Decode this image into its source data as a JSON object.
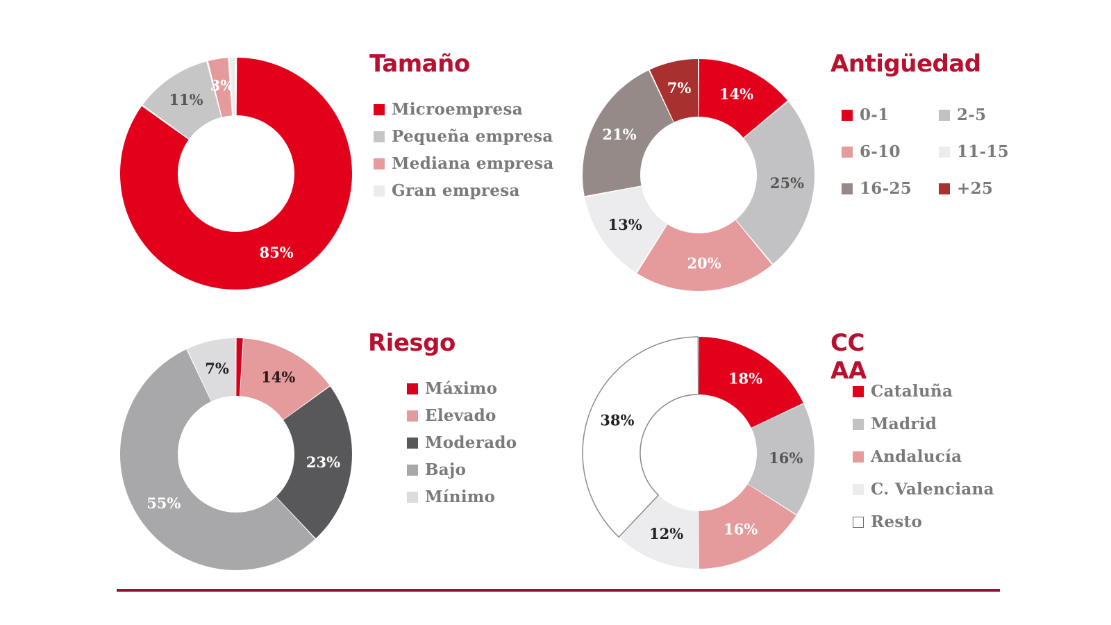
{
  "colors": {
    "title": "#b8102e",
    "rule": "#9b0f2e",
    "legend_text": "#7a7a7a"
  },
  "chart_data": [
    {
      "id": "tamano",
      "type": "pie",
      "donut": true,
      "title": "Tamaño",
      "legend_layout": "list",
      "legend_position": "right",
      "slices": [
        {
          "name": "Microempresa",
          "value": 85,
          "label": "85%",
          "color": "#e2001a",
          "label_color": "#ffffff"
        },
        {
          "name": "Pequeña empresa",
          "value": 11,
          "label": "11%",
          "color": "#c6c6c6",
          "label_color": "#555555"
        },
        {
          "name": "Mediana empresa",
          "value": 3,
          "label": "3%",
          "color": "#e59a9c",
          "label_color": "#ffffff"
        },
        {
          "name": "Gran empresa",
          "value": 1,
          "label": "",
          "color": "#ececec",
          "label_color": "#555555"
        }
      ]
    },
    {
      "id": "antiguedad",
      "type": "pie",
      "donut": true,
      "title": "Antigüedad",
      "legend_layout": "grid",
      "legend_position": "right",
      "slices": [
        {
          "name": "0-1",
          "value": 14,
          "label": "14%",
          "color": "#e2001a",
          "label_color": "#ffffff"
        },
        {
          "name": "2-5",
          "value": 25,
          "label": "25%",
          "color": "#c2c2c4",
          "label_color": "#555555"
        },
        {
          "name": "6-10",
          "value": 20,
          "label": "20%",
          "color": "#e59a9c",
          "label_color": "#ffffff"
        },
        {
          "name": "11-15",
          "value": 13,
          "label": "13%",
          "color": "#ececee",
          "label_color": "#222222"
        },
        {
          "name": "16-25",
          "value": 21,
          "label": "21%",
          "color": "#958a87",
          "label_color": "#ffffff"
        },
        {
          "name": "+25",
          "value": 7,
          "label": "7%",
          "color": "#a8302e",
          "label_color": "#ffffff"
        }
      ]
    },
    {
      "id": "riesgo",
      "type": "pie",
      "donut": true,
      "title": "Riesgo",
      "legend_layout": "list",
      "legend_position": "right",
      "slices": [
        {
          "name": "Máximo",
          "value": 1,
          "label": "",
          "color": "#d6001c",
          "label_color": "#ffffff"
        },
        {
          "name": "Elevado",
          "value": 14,
          "label": "14%",
          "color": "#e59a9c",
          "label_color": "#2a1a1a"
        },
        {
          "name": "Moderado",
          "value": 23,
          "label": "23%",
          "color": "#58585a",
          "label_color": "#ffffff"
        },
        {
          "name": "Bajo",
          "value": 55,
          "label": "55%",
          "color": "#a8a8aa",
          "label_color": "#ffffff"
        },
        {
          "name": "Mínimo",
          "value": 7,
          "label": "7%",
          "color": "#dcdcde",
          "label_color": "#222222"
        }
      ]
    },
    {
      "id": "ccaa",
      "type": "pie",
      "donut": true,
      "title": "CC AA",
      "legend_layout": "list",
      "legend_position": "right",
      "slices": [
        {
          "name": "Cataluña",
          "value": 18,
          "label": "18%",
          "color": "#e2001a",
          "label_color": "#ffffff"
        },
        {
          "name": "Madrid",
          "value": 16,
          "label": "16%",
          "color": "#c2c2c4",
          "label_color": "#555555"
        },
        {
          "name": "Andalucía",
          "value": 16,
          "label": "16%",
          "color": "#e59a9c",
          "label_color": "#ffffff"
        },
        {
          "name": "C. Valenciana",
          "value": 12,
          "label": "12%",
          "color": "#ececee",
          "label_color": "#222222"
        },
        {
          "name": "Resto",
          "value": 38,
          "label": "38%",
          "color": "#ffffff",
          "label_color": "#222222",
          "outlined": true
        }
      ]
    }
  ]
}
